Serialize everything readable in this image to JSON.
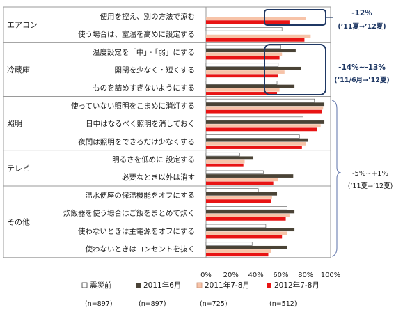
{
  "chart_data": {
    "type": "bar",
    "orientation": "horizontal",
    "xlim": [
      0,
      100
    ],
    "x_ticks": [
      "0%",
      "20%",
      "40%",
      "60%",
      "80%",
      "100%"
    ],
    "groups": [
      {
        "name": "エアコン",
        "categories": [
          0,
          1
        ]
      },
      {
        "name": "冷蔵庫",
        "categories": [
          2,
          3,
          4
        ]
      },
      {
        "name": "照明",
        "categories": [
          5,
          6,
          7
        ]
      },
      {
        "name": "テレビ",
        "categories": [
          8,
          9
        ]
      },
      {
        "name": "その他",
        "categories": [
          10,
          11,
          12,
          13
        ]
      }
    ],
    "categories": [
      "使用を控え、別の方法で涼む",
      "使う場合は、室温を高めに設定する",
      "温度設定を「中」・「弱」にする",
      "開閉を少なく・短くする",
      "ものを詰めすぎないようにする",
      "使っていない照明をこまめに消灯する",
      "日中はなるべく照明を消しておく",
      "夜間は照明をできるだけ少なくする",
      "明るさを低めに 設定する",
      "必要なとき以外は消す",
      "温水便座の保温機能をオフにする",
      "炊飯器を使う場合はご飯をまとめて炊く",
      "使わないときは主電源をオフにする",
      "使わないときはコンセントを抜く"
    ],
    "series": [
      {
        "name": "震災前",
        "n": "(n=897)",
        "color": "#ffffff",
        "values": [
          null,
          61,
          60,
          58,
          57,
          87,
          78,
          75,
          27,
          46,
          42,
          65,
          48,
          37
        ]
      },
      {
        "name": "2011年6月",
        "n": "(n=897)",
        "color": "#4a4336",
        "values": [
          null,
          null,
          72,
          76,
          71,
          95,
          95,
          82,
          38,
          70,
          57,
          71,
          71,
          65
        ]
      },
      {
        "name": "2011年7-8月",
        "n": "(n=725)",
        "color": "#f7c3a8",
        "values": [
          80,
          84,
          61,
          63,
          59,
          94,
          92,
          80,
          31,
          58,
          53,
          67,
          65,
          52
        ]
      },
      {
        "name": "2012年7-8月",
        "n": "(n=512)",
        "color": "#e81414",
        "values": [
          67,
          79,
          59,
          58,
          57,
          93,
          89,
          77,
          30,
          54,
          52,
          64,
          61,
          50
        ]
      }
    ],
    "annotations": [
      {
        "lines": [
          "-12%",
          "(’11夏→’12夏)"
        ],
        "style": "boxed"
      },
      {
        "lines": [
          "-14%~-13%",
          "(’11/6月→’12夏)"
        ],
        "style": "boxed"
      },
      {
        "lines": [
          "-5%~+1%",
          "(’11夏→’12夏)"
        ],
        "style": "bracket"
      }
    ],
    "legend_position": "bottom"
  }
}
